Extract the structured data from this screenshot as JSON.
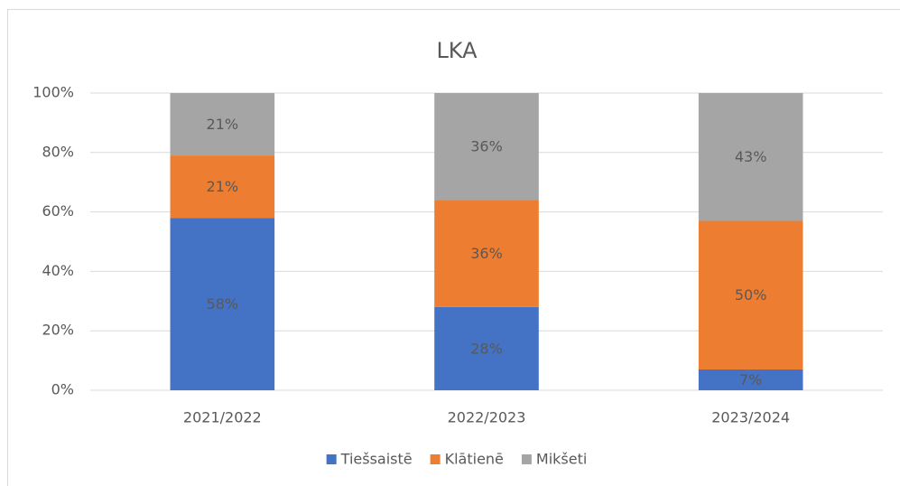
{
  "chart_data": {
    "type": "stacked_bar",
    "title": "LKA",
    "categories": [
      "2021/2022",
      "2022/2023",
      "2023/2024"
    ],
    "series": [
      {
        "name": "Tiešsaistē",
        "color": "#4472c4",
        "values": [
          58,
          28,
          7
        ],
        "value_labels": [
          "58%",
          "28%",
          "7%"
        ]
      },
      {
        "name": "Klātienē",
        "color": "#ed7d31",
        "values": [
          21,
          36,
          50
        ],
        "value_labels": [
          "21%",
          "36%",
          "50%"
        ]
      },
      {
        "name": "Mikšeti",
        "color": "#a5a5a5",
        "values": [
          21,
          36,
          43
        ],
        "value_labels": [
          "21%",
          "36%",
          "43%"
        ]
      }
    ],
    "ylim": [
      0,
      100
    ],
    "yticks": [
      {
        "value": 0,
        "label": "0%"
      },
      {
        "value": 20,
        "label": "20%"
      },
      {
        "value": 40,
        "label": "40%"
      },
      {
        "value": 60,
        "label": "60%"
      },
      {
        "value": 80,
        "label": "80%"
      },
      {
        "value": 100,
        "label": "100%"
      }
    ],
    "grid": true,
    "legend": "bottom"
  }
}
